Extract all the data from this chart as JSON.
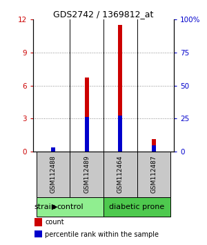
{
  "title": "GDS2742 / 1369812_at",
  "samples": [
    "GSM112488",
    "GSM112489",
    "GSM112464",
    "GSM112487"
  ],
  "red_values": [
    0.3,
    6.7,
    11.5,
    1.1
  ],
  "blue_values": [
    0.35,
    3.15,
    3.25,
    0.55
  ],
  "ylim_left": [
    0,
    12
  ],
  "ylim_right": [
    0,
    100
  ],
  "yticks_left": [
    0,
    3,
    6,
    9,
    12
  ],
  "yticks_right": [
    0,
    25,
    50,
    75,
    100
  ],
  "ytick_labels_right": [
    "0",
    "25",
    "50",
    "75",
    "100%"
  ],
  "groups": [
    {
      "label": "control",
      "samples": [
        0,
        1
      ],
      "color": "#90EE90"
    },
    {
      "label": "diabetic prone",
      "samples": [
        2,
        3
      ],
      "color": "#4EC94E"
    }
  ],
  "strain_label": "strain",
  "legend_items": [
    {
      "color": "#CC0000",
      "label": "count"
    },
    {
      "color": "#0000CC",
      "label": "percentile rank within the sample"
    }
  ],
  "bar_width": 0.12,
  "red_color": "#CC0000",
  "blue_color": "#0000CC",
  "left_tick_color": "#CC0000",
  "right_tick_color": "#0000CC",
  "bg_color": "#FFFFFF",
  "sample_box_color": "#C8C8C8",
  "dotted_line_color": "#888888",
  "separator_color": "#000000",
  "title_fontsize": 9,
  "tick_fontsize": 7.5,
  "sample_fontsize": 6.5,
  "group_fontsize": 8,
  "legend_fontsize": 7,
  "strain_fontsize": 8
}
